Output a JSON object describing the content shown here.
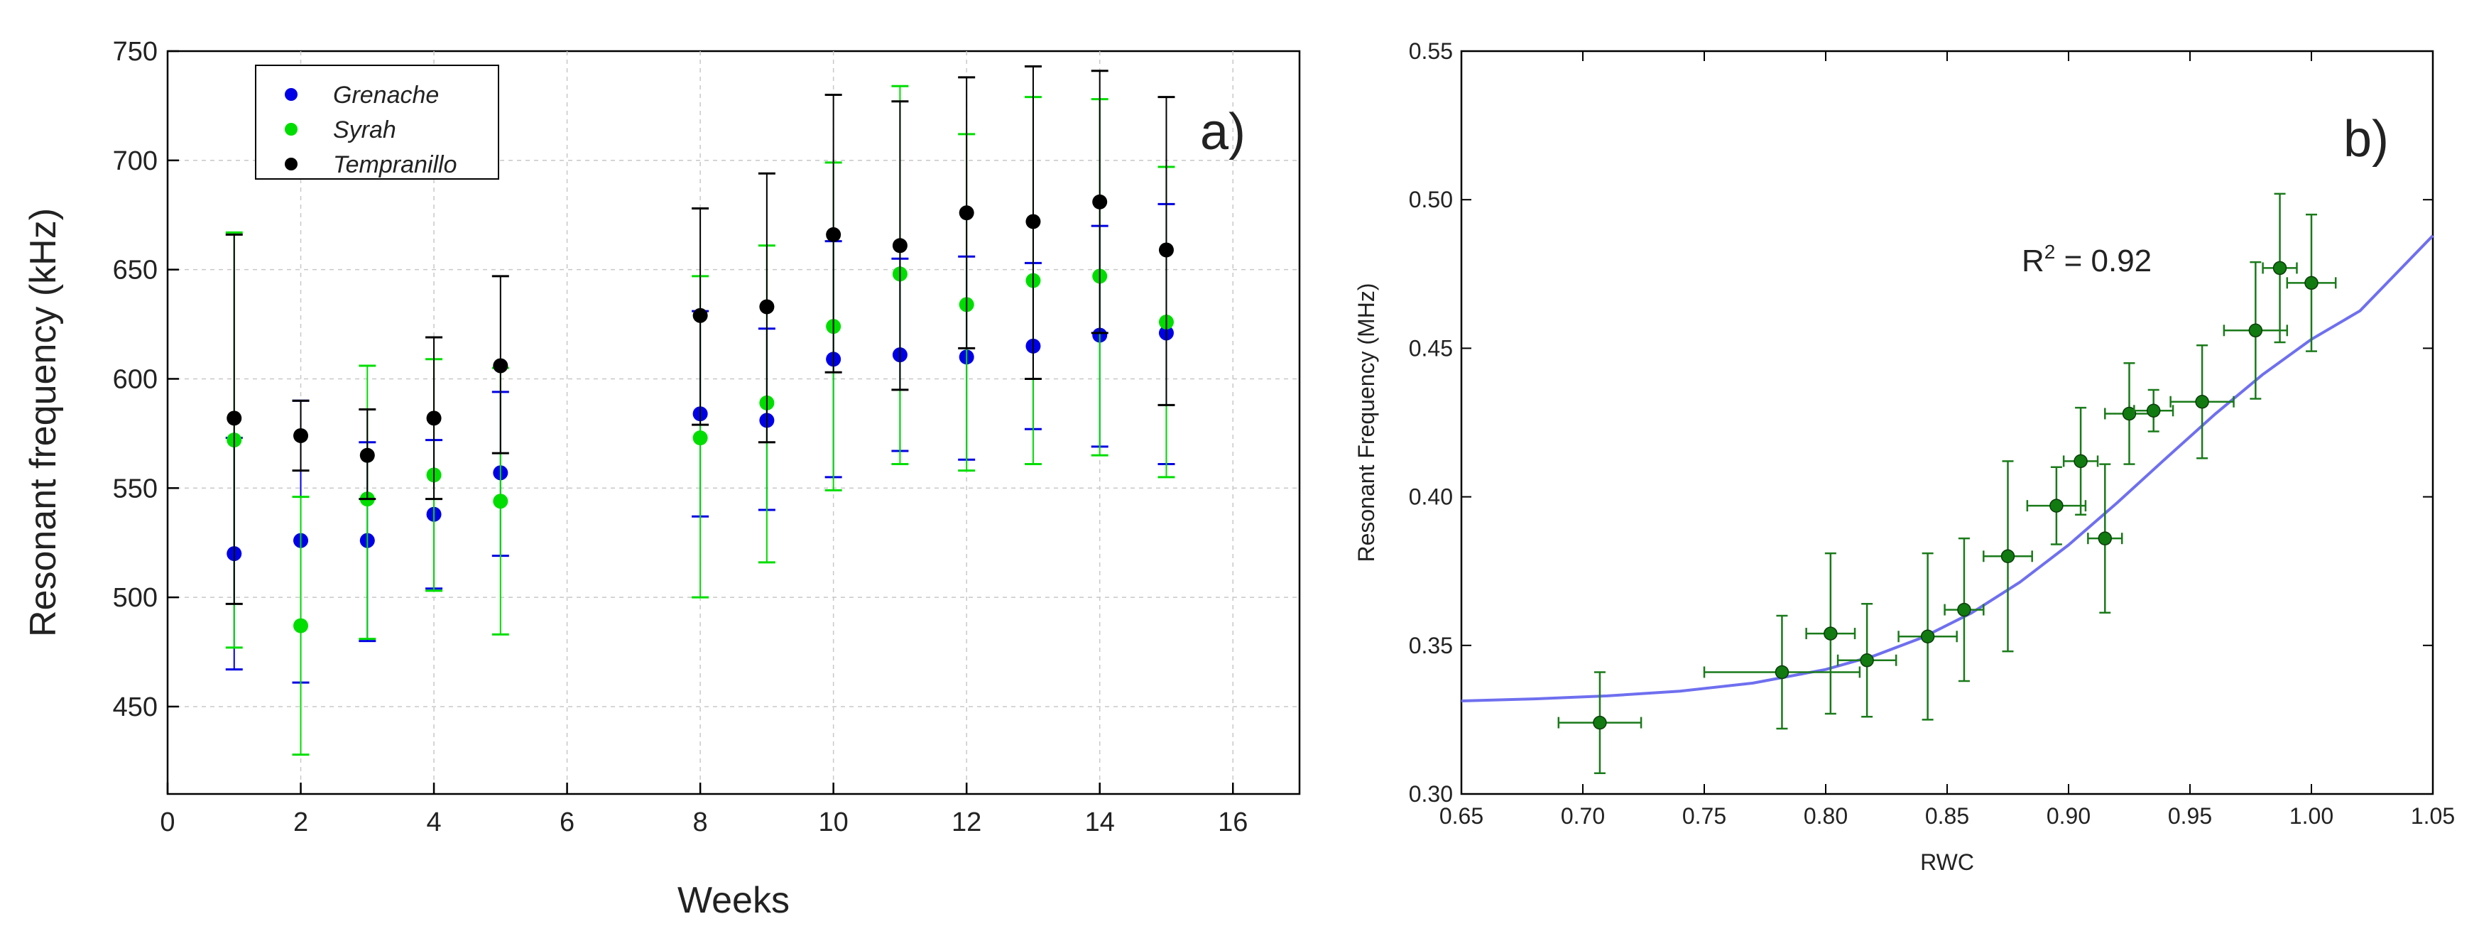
{
  "chart_data": [
    {
      "type": "scatter",
      "panel_label": "a)",
      "xlabel": "Weeks",
      "ylabel": "Resonant frequency (kHz)",
      "xlim": [
        0,
        17
      ],
      "ylim": [
        410,
        750
      ],
      "x_ticks": [
        "0",
        "2",
        "4",
        "6",
        "8",
        "10",
        "12",
        "14",
        "16"
      ],
      "y_ticks": [
        "450",
        "500",
        "550",
        "600",
        "650",
        "700",
        "750"
      ],
      "grid": true,
      "legend_position": "top-left",
      "series": [
        {
          "name": "Grenache",
          "color": "#0000e6",
          "x": [
            1,
            2,
            3,
            4,
            5,
            8,
            9,
            10,
            11,
            12,
            13,
            14,
            15
          ],
          "y": [
            520,
            526,
            526,
            538,
            557,
            584,
            581,
            609,
            611,
            610,
            615,
            620,
            621
          ],
          "err_low": [
            467,
            461,
            480,
            504,
            519,
            537,
            540,
            555,
            567,
            563,
            577,
            569,
            561
          ],
          "err_high": [
            573,
            590,
            571,
            572,
            594,
            631,
            623,
            663,
            655,
            656,
            653,
            670,
            680
          ]
        },
        {
          "name": "Syrah",
          "color": "#00dd00",
          "x": [
            1,
            2,
            3,
            4,
            5,
            8,
            9,
            10,
            11,
            12,
            13,
            14,
            15
          ],
          "y": [
            572,
            487,
            545,
            556,
            544,
            573,
            589,
            624,
            648,
            634,
            645,
            647,
            626
          ],
          "err_low": [
            477,
            428,
            481,
            503,
            483,
            500,
            516,
            549,
            561,
            558,
            561,
            565,
            555
          ],
          "err_high": [
            667,
            546,
            606,
            609,
            605,
            647,
            661,
            699,
            734,
            712,
            729,
            728,
            697
          ]
        },
        {
          "name": "Tempranillo",
          "color": "#000000",
          "x": [
            1,
            2,
            3,
            4,
            5,
            8,
            9,
            10,
            11,
            12,
            13,
            14,
            15
          ],
          "y": [
            582,
            574,
            565,
            582,
            606,
            629,
            633,
            666,
            661,
            676,
            672,
            681,
            659
          ],
          "err_low": [
            497,
            558,
            545,
            545,
            566,
            579,
            571,
            603,
            595,
            614,
            600,
            621,
            588
          ],
          "err_high": [
            666,
            590,
            586,
            619,
            647,
            678,
            694,
            730,
            727,
            738,
            743,
            741,
            729
          ]
        }
      ]
    },
    {
      "type": "scatter",
      "panel_label": "b)",
      "xlabel": "RWC",
      "ylabel": "Resonant Frequency (MHz)",
      "xlim": [
        0.65,
        1.05
      ],
      "ylim": [
        0.3,
        0.55
      ],
      "x_ticks": [
        "0.65",
        "0.70",
        "0.75",
        "0.80",
        "0.85",
        "0.90",
        "0.95",
        "1.00",
        "1.05"
      ],
      "y_ticks": [
        "0.30",
        "0.35",
        "0.40",
        "0.45",
        "0.50",
        "0.55"
      ],
      "grid": false,
      "annotation": {
        "base": "R",
        "sup": "2",
        "rest": " = 0.92"
      },
      "points": {
        "color": "#1a7a1a",
        "x": [
          0.707,
          0.782,
          0.802,
          0.817,
          0.842,
          0.857,
          0.875,
          0.895,
          0.905,
          0.915,
          0.925,
          0.935,
          0.955,
          0.977,
          0.987,
          1.0
        ],
        "y": [
          0.324,
          0.341,
          0.354,
          0.345,
          0.353,
          0.362,
          0.38,
          0.397,
          0.412,
          0.386,
          0.428,
          0.429,
          0.432,
          0.456,
          0.477,
          0.472
        ],
        "x_err": [
          0.017,
          0.032,
          0.01,
          0.012,
          0.012,
          0.008,
          0.01,
          0.012,
          0.007,
          0.007,
          0.01,
          0.008,
          0.013,
          0.013,
          0.007,
          0.01
        ],
        "y_err": [
          0.017,
          0.019,
          0.027,
          0.019,
          0.028,
          0.024,
          0.032,
          0.013,
          0.018,
          0.025,
          0.017,
          0.007,
          0.019,
          0.023,
          0.025,
          0.023
        ]
      },
      "fit_curve": {
        "color": "#6f6ff0",
        "x": [
          0.65,
          0.68,
          0.71,
          0.74,
          0.77,
          0.8,
          0.82,
          0.84,
          0.86,
          0.88,
          0.9,
          0.92,
          0.94,
          0.96,
          0.98,
          1.0,
          1.02,
          1.05
        ],
        "y": [
          0.3313,
          0.332,
          0.333,
          0.3346,
          0.3373,
          0.3419,
          0.3465,
          0.3527,
          0.3609,
          0.3713,
          0.3838,
          0.398,
          0.4129,
          0.4276,
          0.4412,
          0.453,
          0.4626,
          0.4879
        ]
      }
    }
  ]
}
